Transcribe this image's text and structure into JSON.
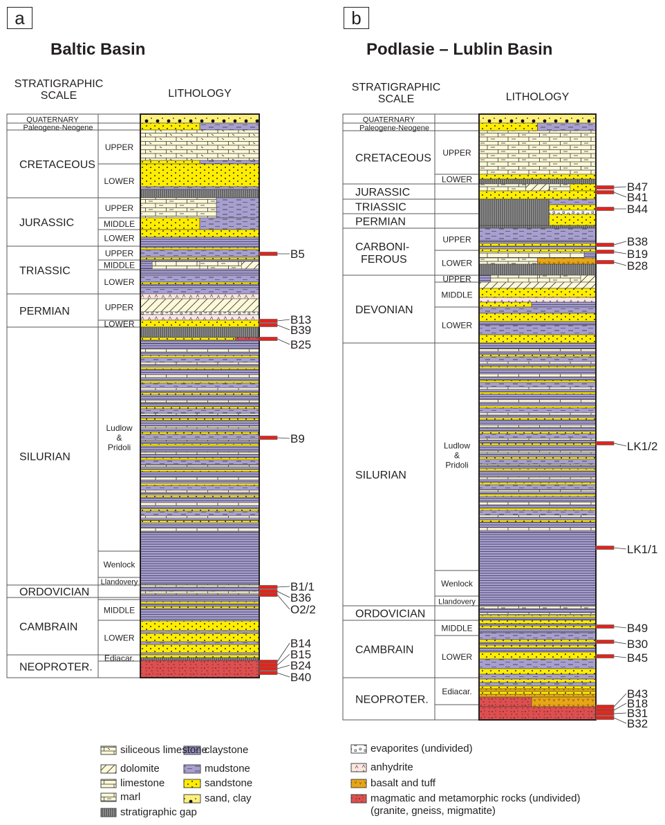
{
  "panels": [
    {
      "letter": "a",
      "title": "Baltic Basin",
      "scale_header": [
        "STRATIGRAPHIC",
        "SCALE"
      ],
      "lithology_header": "LITHOLOGY",
      "periods": [
        "QUATERNARY",
        "Paleogene-Neogene",
        "CRETACEOUS",
        "JURASSIC",
        "TRIASSIC",
        "PERMIAN",
        "SILURIAN",
        "ORDOVICIAN",
        "CAMBRAIN",
        "NEOPROTER."
      ],
      "subdivisions": [
        "UPPER",
        "LOWER",
        "UPPER",
        "MIDDLE",
        "LOWER",
        "UPPER",
        "MIDDLE",
        "LOWER",
        "UPPER",
        "LOWER",
        "Ludlow & Pridoli",
        "Wenlock",
        "Llandovery",
        "MIDDLE",
        "LOWER",
        "Ediacar."
      ],
      "samples": [
        "B5",
        "B13",
        "B39",
        "B25",
        "B9",
        "B1/1",
        "B36",
        "O2/2",
        "B14",
        "B15",
        "B24",
        "B40"
      ]
    },
    {
      "letter": "b",
      "title": "Podlasie – Lublin Basin",
      "scale_header": [
        "STRATIGRAPHIC",
        "SCALE"
      ],
      "lithology_header": "LITHOLOGY",
      "periods": [
        "QUATERNARY",
        "Paleogene-Neogene",
        "CRETACEOUS",
        "JURASSIC",
        "TRIASSIC",
        "PERMIAN",
        "CARBONI- FEROUS",
        "DEVONIAN",
        "SILURIAN",
        "ORDOVICIAN",
        "CAMBRAIN",
        "NEOPROTER."
      ],
      "subdivisions": [
        "UPPER",
        "LOWER",
        "UPPER",
        "LOWER",
        "UPPER",
        "MIDDLE",
        "LOWER",
        "Ludlow & Pridoli",
        "Wenlock",
        "Llandovery",
        "MIDDLE",
        "LOWER",
        "Ediacar."
      ],
      "samples": [
        "B47",
        "B41",
        "B44",
        "B38",
        "B19",
        "B28",
        "LK1/2",
        "LK1/1",
        "B49",
        "B30",
        "B45",
        "B43",
        "B18",
        "B31",
        "B32"
      ]
    }
  ],
  "legend": [
    {
      "key": "sil",
      "label": "siliceous limestone"
    },
    {
      "key": "dol",
      "label": "dolomite"
    },
    {
      "key": "lime",
      "label": "limestone"
    },
    {
      "key": "marl",
      "label": "marl"
    },
    {
      "key": "gap",
      "label": "stratigraphic gap"
    },
    {
      "key": "clay",
      "label": "claystone"
    },
    {
      "key": "mud",
      "label": "mudstone"
    },
    {
      "key": "sand",
      "label": "sandstone"
    },
    {
      "key": "sc",
      "label": "sand, clay"
    },
    {
      "key": "evap",
      "label": "evaporites (undivided)"
    },
    {
      "key": "anh",
      "label": "anhydrite"
    },
    {
      "key": "basalt",
      "label": "basalt and tuff"
    },
    {
      "key": "magm",
      "label": "magmatic and metamorphic rocks (undivided)",
      "label2": "(granite, gneiss, migmatite)"
    }
  ],
  "colors": {
    "sandstone": "#ffed00",
    "sand_clay": "#fdf07a",
    "claystone": "#a79fd0",
    "mudstone": "#a79fd0",
    "limestone": "#fdf8d8",
    "gap": "#8a8a8a",
    "anhydrite": "#fde6e0",
    "basalt": "#e8a617",
    "magmatic": "#de4f50",
    "sample_marker": "#e3241b"
  }
}
